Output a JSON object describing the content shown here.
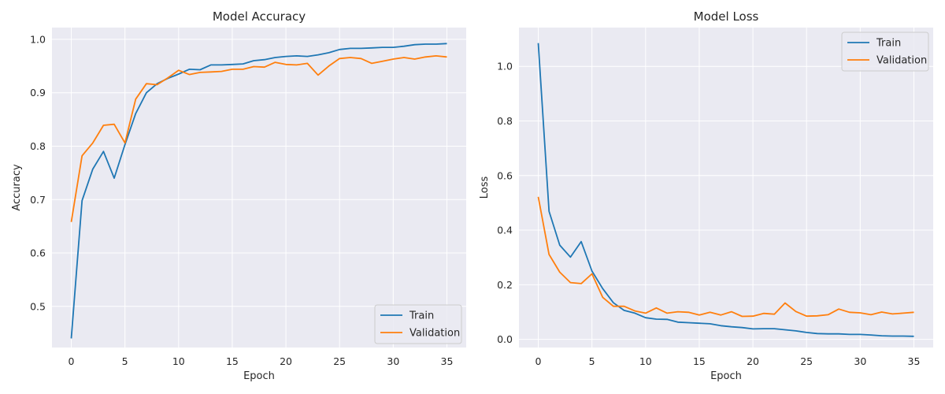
{
  "colors": {
    "train": "#1f77b4",
    "validation": "#ff7f0e",
    "axes_background": "#eaeaf2",
    "grid": "#ffffff"
  },
  "chart_data": [
    {
      "type": "line",
      "title": "Model Accuracy",
      "xlabel": "Epoch",
      "ylabel": "Accuracy",
      "xlim": [
        -1.8,
        36.8
      ],
      "ylim": [
        0.423,
        1.022
      ],
      "xticks": [
        0,
        5,
        10,
        15,
        20,
        25,
        30,
        35
      ],
      "yticks": [
        0.5,
        0.6,
        0.7,
        0.8,
        0.9,
        1.0
      ],
      "ytick_labels": [
        "0.5",
        "0.6",
        "0.7",
        "0.8",
        "0.9",
        "1.0"
      ],
      "grid": true,
      "legend_position": "lower right",
      "x": [
        0,
        1,
        2,
        3,
        4,
        5,
        6,
        7,
        8,
        9,
        10,
        11,
        12,
        13,
        14,
        15,
        16,
        17,
        18,
        19,
        20,
        21,
        22,
        23,
        24,
        25,
        26,
        27,
        28,
        29,
        30,
        31,
        32,
        33,
        34,
        35
      ],
      "series": [
        {
          "name": "Train",
          "color_key": "train",
          "values": [
            0.44,
            0.698,
            0.757,
            0.79,
            0.74,
            0.803,
            0.861,
            0.9,
            0.917,
            0.927,
            0.935,
            0.944,
            0.943,
            0.952,
            0.952,
            0.953,
            0.954,
            0.96,
            0.962,
            0.966,
            0.968,
            0.969,
            0.968,
            0.971,
            0.975,
            0.981,
            0.983,
            0.983,
            0.984,
            0.985,
            0.985,
            0.987,
            0.99,
            0.991,
            0.991,
            0.992
          ]
        },
        {
          "name": "Validation",
          "color_key": "validation",
          "values": [
            0.658,
            0.782,
            0.806,
            0.839,
            0.841,
            0.806,
            0.888,
            0.917,
            0.915,
            0.928,
            0.942,
            0.934,
            0.938,
            0.939,
            0.94,
            0.944,
            0.944,
            0.949,
            0.948,
            0.957,
            0.953,
            0.952,
            0.955,
            0.933,
            0.95,
            0.964,
            0.966,
            0.964,
            0.955,
            0.959,
            0.963,
            0.966,
            0.963,
            0.967,
            0.969,
            0.967
          ]
        }
      ]
    },
    {
      "type": "line",
      "title": "Model Loss",
      "xlabel": "Epoch",
      "ylabel": "Loss",
      "xlim": [
        -1.8,
        36.8
      ],
      "ylim": [
        -0.03,
        1.142
      ],
      "xticks": [
        0,
        5,
        10,
        15,
        20,
        25,
        30,
        35
      ],
      "yticks": [
        0.0,
        0.2,
        0.4,
        0.6,
        0.8,
        1.0
      ],
      "ytick_labels": [
        "0.0",
        "0.2",
        "0.4",
        "0.6",
        "0.8",
        "1.0"
      ],
      "grid": true,
      "legend_position": "upper right",
      "x": [
        0,
        1,
        2,
        3,
        4,
        5,
        6,
        7,
        8,
        9,
        10,
        11,
        12,
        13,
        14,
        15,
        16,
        17,
        18,
        19,
        20,
        21,
        22,
        23,
        24,
        25,
        26,
        27,
        28,
        29,
        30,
        31,
        32,
        33,
        34,
        35
      ],
      "series": [
        {
          "name": "Train",
          "color_key": "train",
          "values": [
            1.085,
            0.469,
            0.345,
            0.301,
            0.358,
            0.25,
            0.186,
            0.134,
            0.106,
            0.096,
            0.079,
            0.074,
            0.073,
            0.063,
            0.061,
            0.059,
            0.057,
            0.05,
            0.046,
            0.043,
            0.038,
            0.039,
            0.039,
            0.035,
            0.031,
            0.025,
            0.021,
            0.02,
            0.02,
            0.018,
            0.018,
            0.016,
            0.013,
            0.012,
            0.012,
            0.011
          ]
        },
        {
          "name": "Validation",
          "color_key": "validation",
          "values": [
            0.522,
            0.311,
            0.246,
            0.208,
            0.204,
            0.24,
            0.154,
            0.121,
            0.121,
            0.104,
            0.096,
            0.115,
            0.096,
            0.101,
            0.099,
            0.089,
            0.099,
            0.089,
            0.101,
            0.084,
            0.085,
            0.095,
            0.092,
            0.133,
            0.102,
            0.085,
            0.086,
            0.09,
            0.111,
            0.099,
            0.097,
            0.09,
            0.1,
            0.093,
            0.096,
            0.099
          ]
        }
      ]
    }
  ]
}
